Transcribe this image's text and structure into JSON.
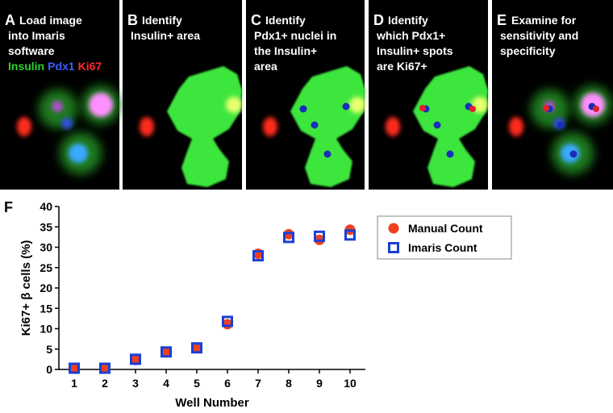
{
  "panels": [
    {
      "letter": "A",
      "lines": [
        "Load image",
        "into Imaris",
        "software"
      ],
      "stains": [
        {
          "text": "Insulin",
          "color": "#2bd12b"
        },
        {
          "text": "Pdx1",
          "color": "#3a5cff"
        },
        {
          "text": "Ki67",
          "color": "#ff2a2a"
        }
      ]
    },
    {
      "letter": "B",
      "lines": [
        "Identify",
        "Insulin+ area"
      ]
    },
    {
      "letter": "C",
      "lines": [
        "Identify",
        "Pdx1+ nuclei in",
        "the Insulin+",
        "area"
      ]
    },
    {
      "letter": "D",
      "lines": [
        "Identify",
        "which Pdx1+",
        "Insulin+ spots",
        "are Ki67+"
      ]
    },
    {
      "letter": "E",
      "lines": [
        "Examine for",
        "sensitivity and",
        "specificity"
      ]
    }
  ],
  "chart_letter": "F",
  "chart_data": {
    "type": "scatter",
    "ylabel": "Ki67+ β cells (%)",
    "xlabel": "Well Number",
    "x": [
      1,
      2,
      3,
      4,
      5,
      6,
      7,
      8,
      9,
      10
    ],
    "series": [
      {
        "name": "Manual Count",
        "color": "#f0401e",
        "marker": "circle",
        "values": [
          0.2,
          0.2,
          2.3,
          4.2,
          5.2,
          11.1,
          28.4,
          33.2,
          31.8,
          34.3
        ]
      },
      {
        "name": "Imaris Count",
        "color": "#1a3fd6",
        "marker": "square",
        "values": [
          0.3,
          0.3,
          2.5,
          4.3,
          5.3,
          11.8,
          27.9,
          32.4,
          32.7,
          33.0
        ]
      }
    ],
    "xlim": [
      0.5,
      10.5
    ],
    "xticks": [
      1,
      2,
      3,
      4,
      5,
      6,
      7,
      8,
      9,
      10
    ],
    "ylim": [
      0,
      40
    ],
    "yticks": [
      0,
      5,
      10,
      15,
      20,
      25,
      30,
      35,
      40
    ],
    "legend": "upper right"
  }
}
